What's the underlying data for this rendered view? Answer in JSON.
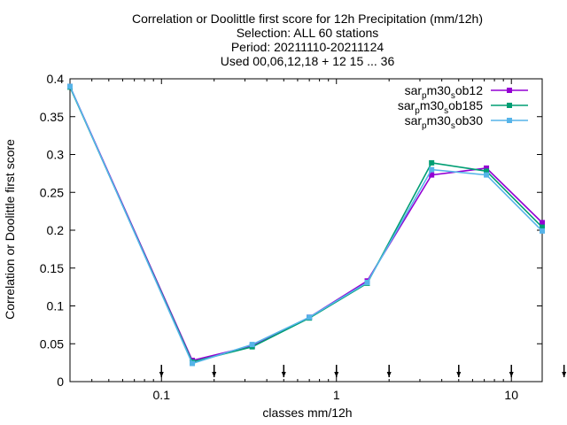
{
  "chart_data": {
    "type": "line",
    "title_lines": [
      "Correlation or Doolittle first score  for 12h Precipitation (mm/12h)",
      "Selection: ALL     60 stations",
      "Period: 20211110-20211124",
      "Used 00,06,12,18 + 12 15 ... 36"
    ],
    "xlabel": "classes mm/12h",
    "ylabel": "Correlation or Doolittle first score",
    "xscale": "log",
    "xlim": [
      0.03,
      15
    ],
    "ylim": [
      0,
      0.4
    ],
    "x_ticks": [
      0.1,
      1,
      10
    ],
    "x_tick_labels": [
      "0.1",
      "1",
      "10"
    ],
    "y_ticks": [
      0,
      0.05,
      0.1,
      0.15,
      0.2,
      0.25,
      0.3,
      0.35,
      0.4
    ],
    "y_tick_labels": [
      "0",
      "0.05",
      "0.1",
      "0.15",
      "0.2",
      "0.25",
      "0.3",
      "0.35",
      "0.4"
    ],
    "class_markers": [
      0.1,
      0.2,
      0.5,
      1,
      2,
      5,
      10,
      20
    ],
    "grid": false,
    "legend_position": "top-right",
    "x": [
      0.03,
      0.15,
      0.33,
      0.7,
      1.5,
      3.5,
      7.2,
      15
    ],
    "series": [
      {
        "name": "sar_p m30_s ob12",
        "name_parts": [
          "sar",
          "p",
          "m30",
          "s",
          "ob12"
        ],
        "color": "#9400d3",
        "values": [
          0.39,
          0.028,
          0.047,
          0.085,
          0.133,
          0.273,
          0.282,
          0.21
        ]
      },
      {
        "name": "sar_p m30_s ob185",
        "name_parts": [
          "sar",
          "p",
          "m30",
          "s",
          "ob185"
        ],
        "color": "#009e73",
        "values": [
          0.389,
          0.026,
          0.046,
          0.084,
          0.13,
          0.289,
          0.278,
          0.204
        ]
      },
      {
        "name": "sar_p m30_s ob30",
        "name_parts": [
          "sar",
          "p",
          "m30",
          "s",
          "ob30"
        ],
        "color": "#56b4e9",
        "values": [
          0.39,
          0.024,
          0.049,
          0.085,
          0.131,
          0.28,
          0.273,
          0.199
        ]
      }
    ]
  }
}
